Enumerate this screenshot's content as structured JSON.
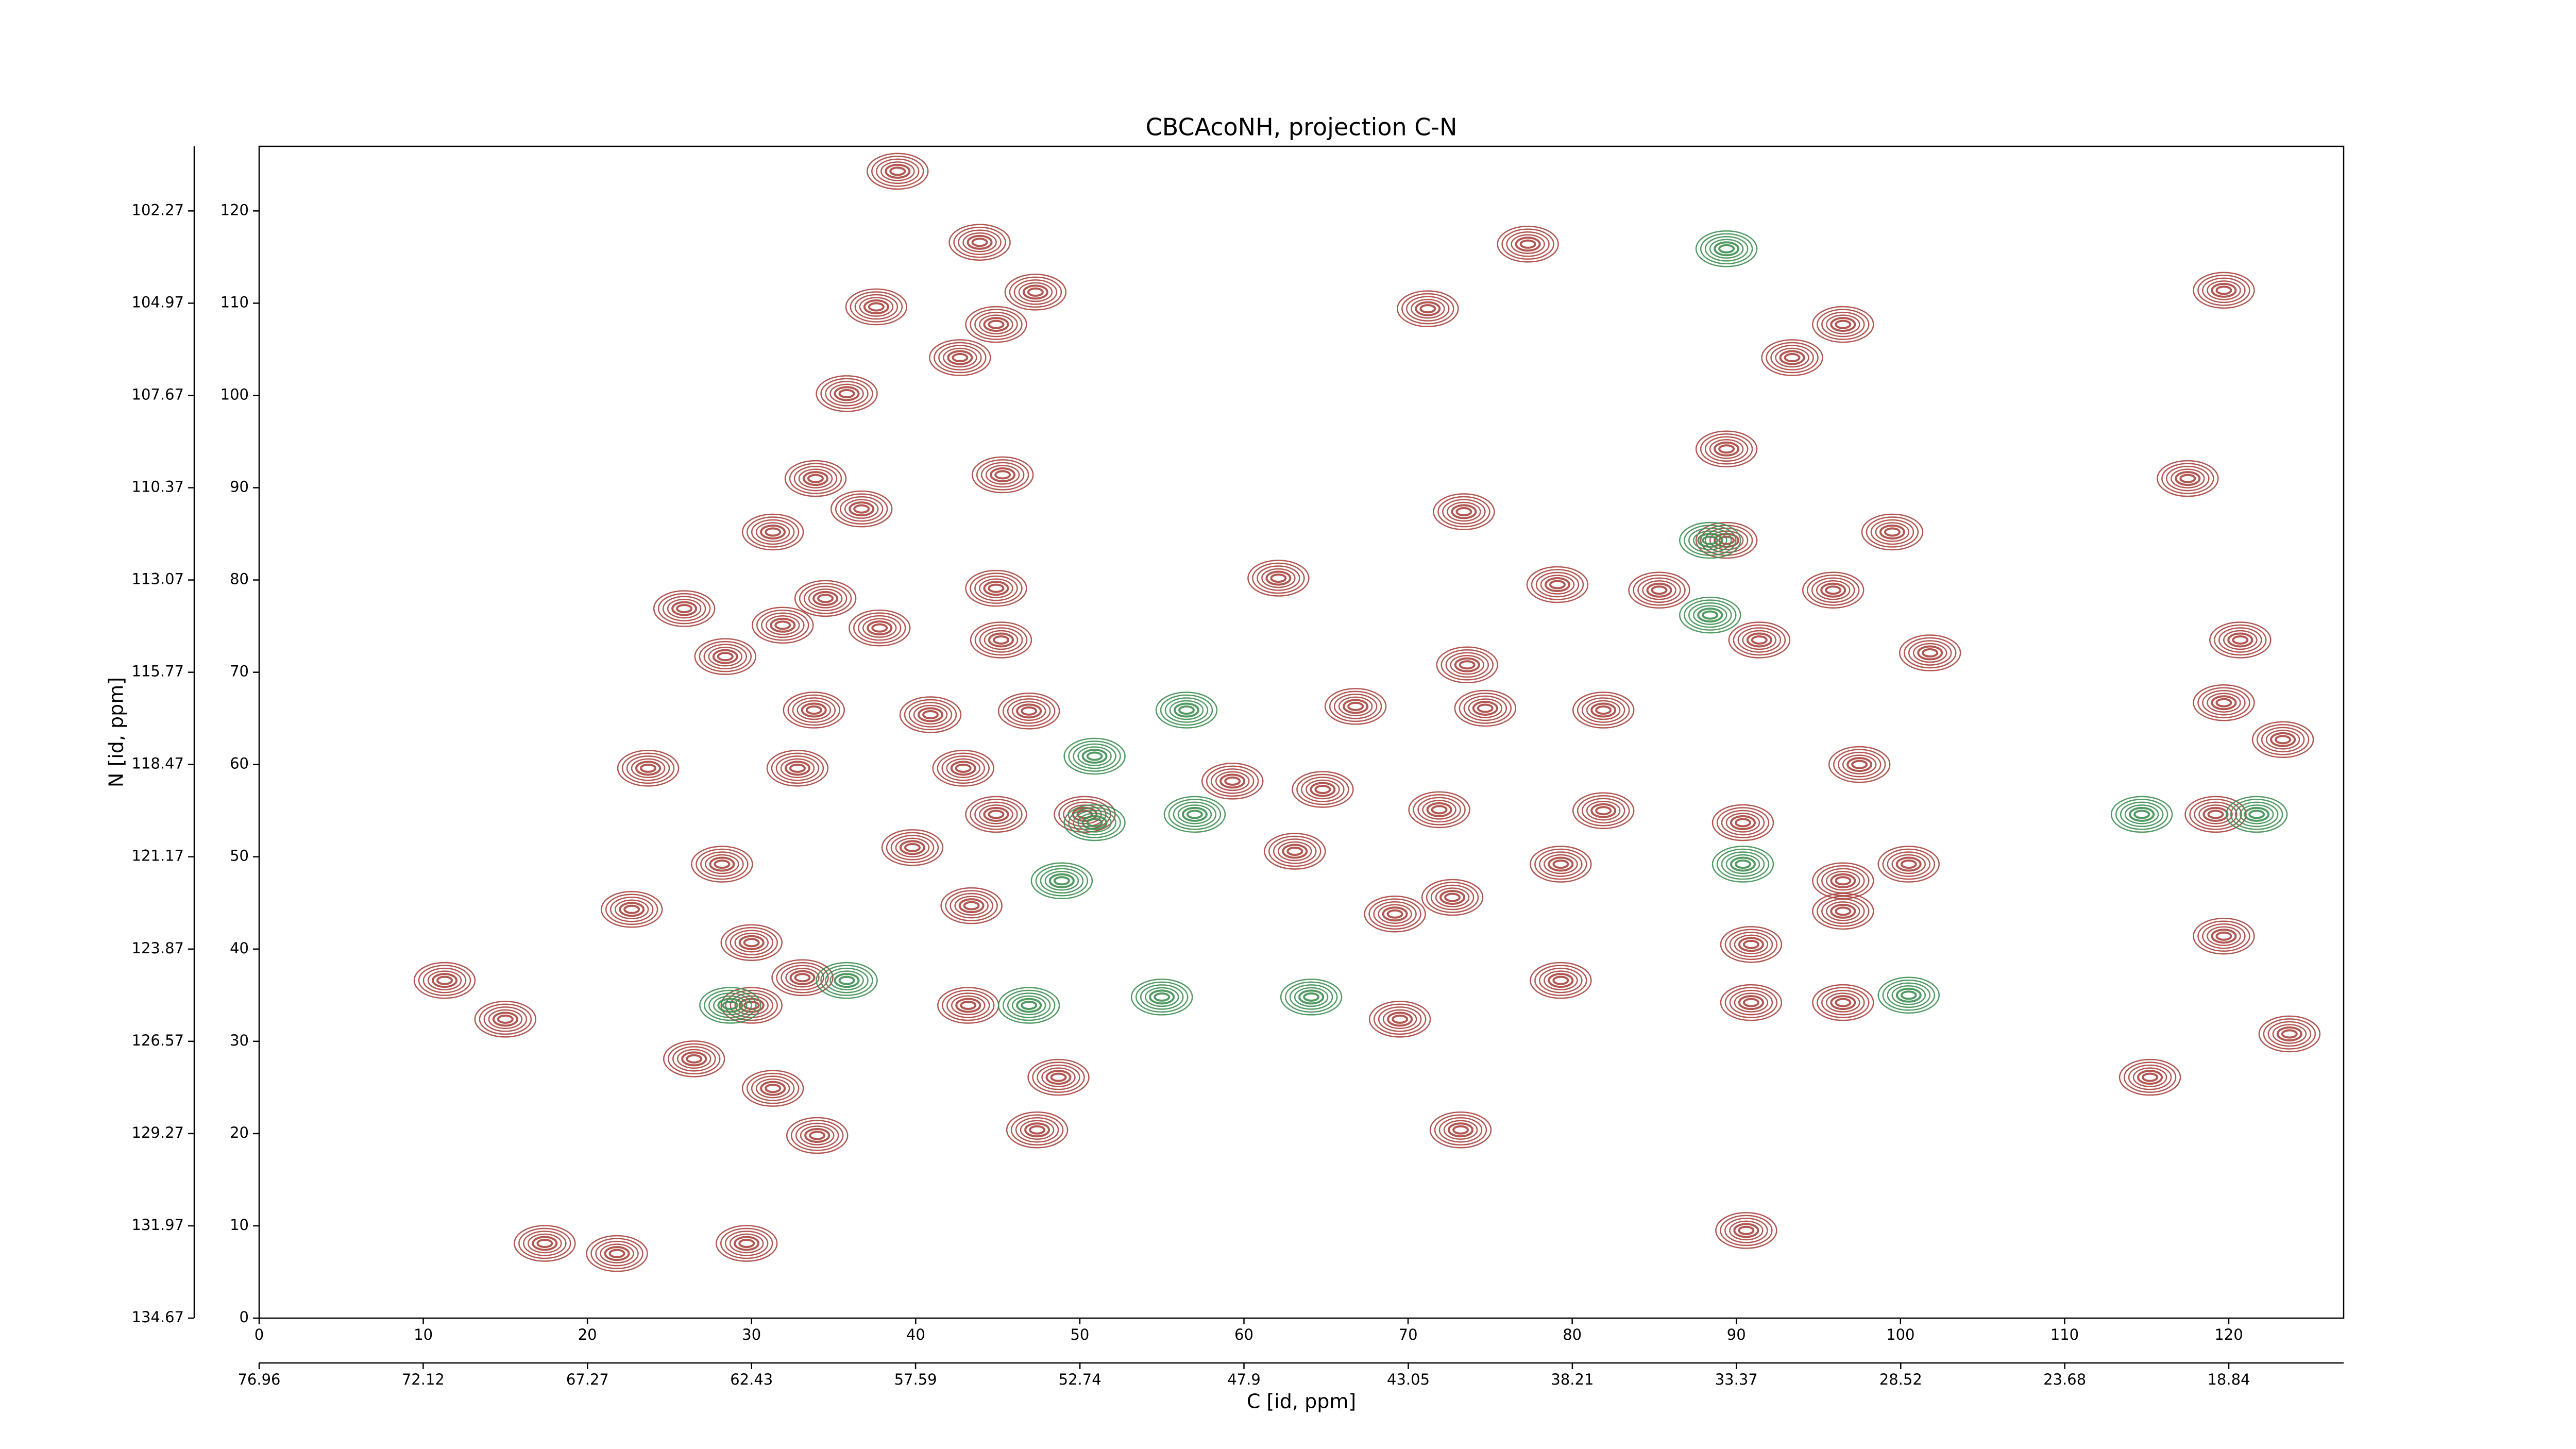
{
  "chart_data": {
    "type": "contour",
    "title": "CBCAcoNH, projection C-N",
    "x_label": "C [id, ppm]",
    "y_label": "N [id, ppm]",
    "xlim": [
      0,
      127
    ],
    "xticks": [
      0,
      10,
      20,
      30,
      40,
      50,
      60,
      70,
      80,
      90,
      100,
      110,
      120
    ],
    "ylim": [
      0,
      127
    ],
    "yticks": [
      0,
      10,
      20,
      30,
      40,
      50,
      60,
      70,
      80,
      90,
      100,
      110,
      120
    ],
    "x2lim": [
      76.96,
      15.45
    ],
    "x2ticks": [
      76.96,
      72.12,
      67.27,
      62.43,
      57.59,
      52.74,
      47.9,
      43.05,
      38.21,
      33.37,
      28.52,
      23.68,
      18.84
    ],
    "y2lim": [
      134.67,
      100.38
    ],
    "y2ticks": [
      134.67,
      131.97,
      129.27,
      126.57,
      123.87,
      121.17,
      118.47,
      115.77,
      113.07,
      110.37,
      107.67,
      104.97,
      102.27
    ],
    "series": [
      {
        "color": "#a8443e",
        "x": [
          38.9,
          43.9,
          47.3,
          37.6,
          44.9,
          42.7,
          35.8,
          33.9,
          36.7,
          45.3,
          31.3,
          44.9,
          25.9,
          28.4,
          31.9,
          34.5,
          37.8,
          45.2,
          33.8,
          40.9,
          46.9,
          23.7,
          32.8,
          42.9,
          50.3,
          44.9,
          28.2,
          39.8,
          43.4,
          22.7,
          30.0,
          33.1,
          30.0,
          43.2,
          26.5,
          48.7,
          31.3,
          47.4,
          34.0,
          15.0,
          11.3,
          17.4,
          21.8,
          29.7,
          77.3,
          71.2,
          62.1,
          66.8,
          64.8,
          63.1,
          59.3,
          73.6,
          74.7,
          81.9,
          73.4,
          79.1,
          71.9,
          72.7,
          69.2,
          79.3,
          81.9,
          79.3,
          69.5,
          73.2,
          90.6,
          89.4,
          89.4,
          93.4,
          96.5,
          99.5,
          95.9,
          91.4,
          97.5,
          90.4,
          96.5,
          96.5,
          90.9,
          90.9,
          96.5,
          100.5,
          119.7,
          117.5,
          120.7,
          119.7,
          123.3,
          119.2,
          119.7,
          123.7,
          115.2,
          85.3,
          101.8
        ],
        "values": [
          124.3,
          116.6,
          111.2,
          109.6,
          107.7,
          104.1,
          100.2,
          91.0,
          87.7,
          91.4,
          85.2,
          79.1,
          76.9,
          71.7,
          75.1,
          78.0,
          74.8,
          73.5,
          65.9,
          65.4,
          65.8,
          59.6,
          59.6,
          59.6,
          54.6,
          54.6,
          49.2,
          51.0,
          44.7,
          44.3,
          40.7,
          36.9,
          33.9,
          33.9,
          28.1,
          26.1,
          24.9,
          20.4,
          19.8,
          32.4,
          36.6,
          8.1,
          7.0,
          8.1,
          116.4,
          109.4,
          80.2,
          66.3,
          57.3,
          50.6,
          58.2,
          70.8,
          66.1,
          65.9,
          87.4,
          79.5,
          55.1,
          45.6,
          43.8,
          49.2,
          55.0,
          36.6,
          32.4,
          20.4,
          9.5,
          94.2,
          84.3,
          104.1,
          107.7,
          85.2,
          78.9,
          73.5,
          60.0,
          53.7,
          47.4,
          44.1,
          40.5,
          34.2,
          34.2,
          49.2,
          111.4,
          91.0,
          73.5,
          66.7,
          62.7,
          54.6,
          41.4,
          30.8,
          26.1,
          78.9,
          72.1
        ]
      },
      {
        "color": "#3e8f52",
        "x": [
          89.4,
          88.4,
          88.4,
          50.9,
          57.0,
          48.9,
          46.9,
          55.0,
          64.1,
          50.9,
          100.5,
          90.4,
          114.7,
          121.7,
          35.8,
          28.7,
          56.5
        ],
        "values": [
          115.9,
          84.3,
          76.2,
          53.7,
          54.6,
          47.4,
          33.9,
          34.8,
          34.8,
          60.9,
          35.0,
          49.2,
          54.6,
          54.6,
          36.6,
          33.9,
          65.9
        ]
      }
    ]
  }
}
